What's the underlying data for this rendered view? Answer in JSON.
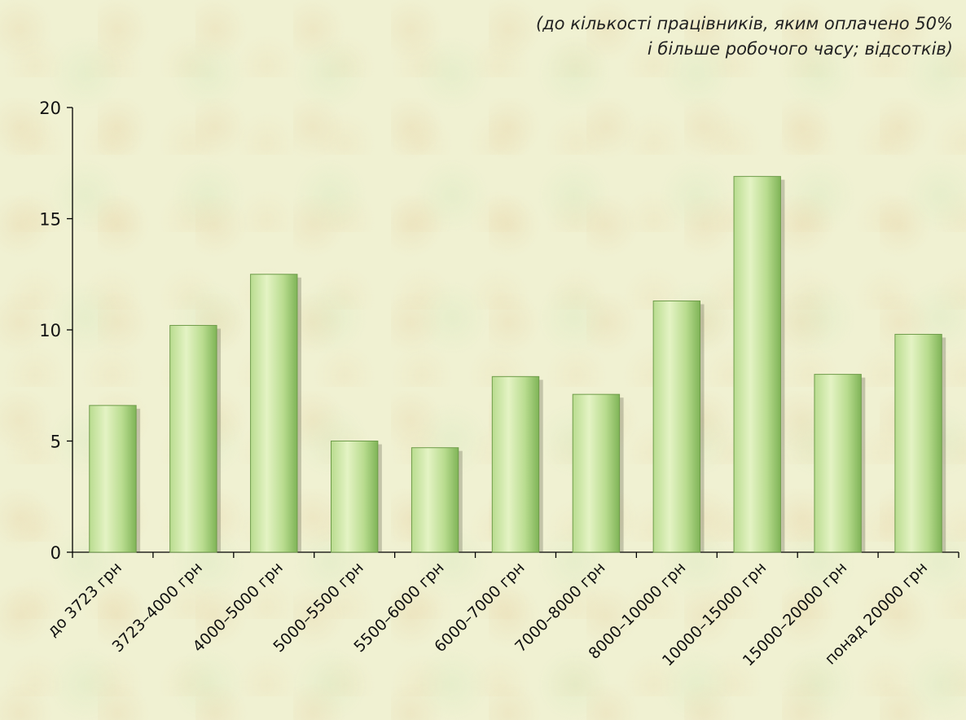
{
  "subtitle": {
    "line1": "(до кількості працівників, яким оплачено 50%",
    "line2": "і більше робочого часу; відсотків)"
  },
  "colors": {
    "background": "#f0f1d2",
    "bar_light": "#e4f3c4",
    "bar_mid": "#b9dc8f",
    "bar_dark": "#7fb457",
    "axis": "#000000"
  },
  "chart_data": {
    "type": "bar",
    "title": "",
    "xlabel": "",
    "ylabel": "",
    "ylim": [
      0,
      20
    ],
    "yticks": [
      0,
      5,
      10,
      15,
      20
    ],
    "grid": false,
    "legend": "none",
    "categories": [
      "до 3723 грн",
      "3723–4000 грн",
      "4000–5000 грн",
      "5000–5500 грн",
      "5500–6000 грн",
      "6000–7000 грн",
      "7000–8000 грн",
      "8000–10000 грн",
      "10000–15000 грн",
      "15000–20000 грн",
      "понад 20000 грн"
    ],
    "values": [
      6.6,
      10.2,
      12.5,
      5.0,
      4.7,
      7.9,
      7.1,
      11.3,
      16.9,
      8.0,
      9.8
    ]
  }
}
